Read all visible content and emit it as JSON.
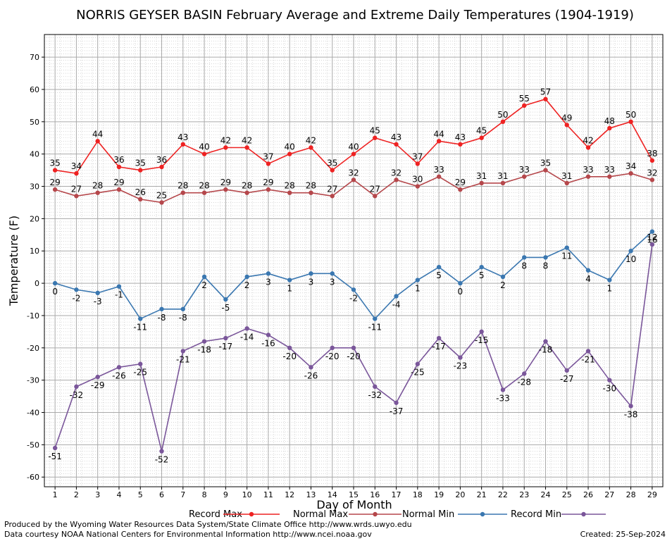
{
  "chart_data": {
    "type": "line",
    "title": "NORRIS GEYSER BASIN February Average and Extreme Daily Temperatures (1904-1919)",
    "xlabel": "Day of Month",
    "ylabel": "Temperature (F)",
    "ylim": [
      -63,
      77
    ],
    "yticks": [
      70,
      60,
      50,
      40,
      30,
      20,
      10,
      0,
      -10,
      -20,
      -30,
      -40,
      -50,
      -60
    ],
    "x": [
      1,
      2,
      3,
      4,
      5,
      6,
      7,
      8,
      9,
      10,
      11,
      12,
      13,
      14,
      15,
      16,
      17,
      18,
      19,
      20,
      21,
      22,
      23,
      24,
      25,
      26,
      27,
      28,
      29
    ],
    "grid": true,
    "legend_position": "bottom",
    "series": [
      {
        "name": "Record Max",
        "color": "#ee2222",
        "values": [
          35,
          34,
          44,
          36,
          35,
          36,
          43,
          40,
          42,
          42,
          37,
          40,
          42,
          35,
          40,
          45,
          43,
          37,
          44,
          43,
          45,
          50,
          55,
          57,
          49,
          42,
          48,
          50,
          38
        ]
      },
      {
        "name": "Normal Max",
        "color": "#b5474b",
        "values": [
          29,
          27,
          28,
          29,
          26,
          25,
          28,
          28,
          29,
          28,
          29,
          28,
          28,
          27,
          32,
          27,
          32,
          30,
          33,
          29,
          31,
          31,
          33,
          35,
          31,
          33,
          33,
          34,
          32
        ]
      },
      {
        "name": "Normal Min",
        "color": "#3a77b0",
        "values": [
          0,
          -2,
          -3,
          -1,
          -11,
          -8,
          -8,
          2,
          -5,
          2,
          3,
          1,
          3,
          3,
          -2,
          -11,
          -4,
          1,
          5,
          0,
          5,
          2,
          8,
          8,
          11,
          4,
          1,
          10,
          16
        ]
      },
      {
        "name": "Record Min",
        "color": "#7a569a",
        "values": [
          -51,
          -32,
          -29,
          -26,
          -25,
          -52,
          -21,
          -18,
          -17,
          -14,
          -16,
          -20,
          -26,
          -20,
          -20,
          -32,
          -37,
          -25,
          -17,
          -23,
          -15,
          -33,
          -28,
          -18,
          -27,
          -21,
          -30,
          -38,
          12
        ]
      }
    ]
  },
  "footer": {
    "left_line1": "Produced by the Wyoming Water Resources Data System/State Climate Office http://www.wrds.uwyo.edu",
    "left_line2": "Data courtesy NOAA National Centers for Environmental Information http://www.ncei.noaa.gov",
    "created": "Created:  25-Sep-2024"
  }
}
